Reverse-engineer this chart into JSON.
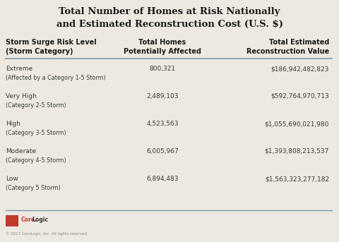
{
  "title_line1": "Total Number of Homes at Risk Nationally",
  "title_line2": "and Estimated Reconstruction Cost (U.S. $)",
  "bg_color": "#ede9e1",
  "col_headers": [
    "Storm Surge Risk Level\n(Storm Category)",
    "Total Homes\nPotentially Affected",
    "Total Estimated\nReconstruction Value"
  ],
  "rows": [
    {
      "label_main": "Extreme",
      "label_sub": "(Affected by a Category 1-5 Storm)",
      "homes": "800,321",
      "value": "$186,942,482,823"
    },
    {
      "label_main": "Very High",
      "label_sub": "(Category 2-5 Storm)",
      "homes": "2,489,103",
      "value": "$592,764,970,713"
    },
    {
      "label_main": "High",
      "label_sub": "(Category 3-5 Storm)",
      "homes": "4,523,563",
      "value": "$1,055,690,021,980"
    },
    {
      "label_main": "Moderate",
      "label_sub": "(Category 4-5 Storm)",
      "homes": "6,005,967",
      "value": "$1,393,808,213,537"
    },
    {
      "label_main": "Low",
      "label_sub": "(Category 5 Storm)",
      "homes": "6,894,483",
      "value": "$1,563,323,277,182"
    }
  ],
  "footer_text": "© 2017 CoreLogic, Inc. All rights reserved.",
  "text_color": "#3a3a3a",
  "header_color": "#1a1a1a",
  "line_color": "#7a9aaa",
  "logo_red_top": "#c0392b",
  "logo_red_bottom": "#8b2020",
  "corelogic_core_color": "#c0392b",
  "corelogic_logic_color": "#333333",
  "title_fontsize": 9.5,
  "header_fontsize": 7.0,
  "data_fontsize": 6.5,
  "sub_fontsize": 5.8,
  "footer_fontsize": 4.0
}
